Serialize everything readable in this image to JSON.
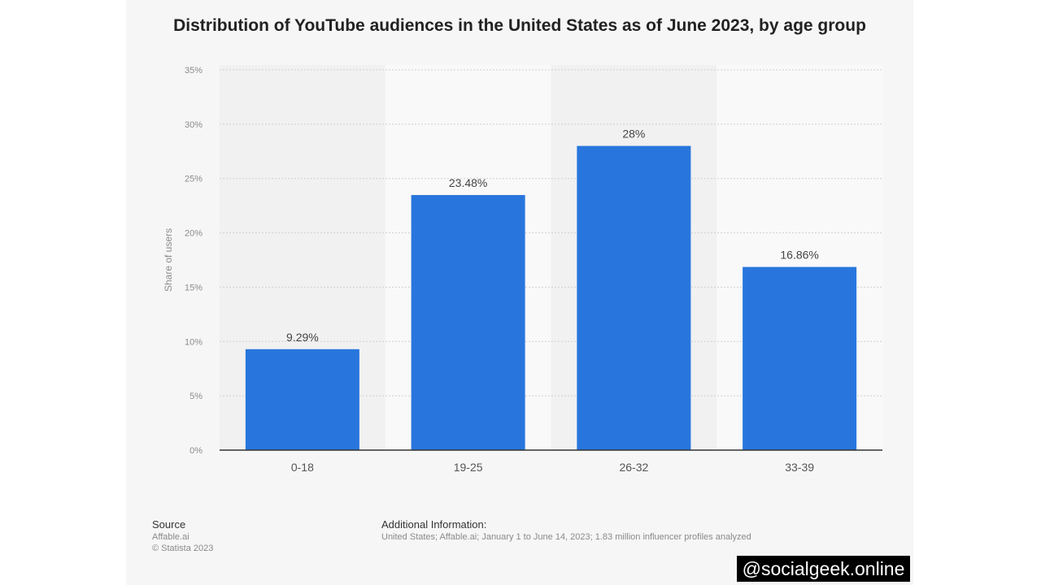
{
  "chart_data": {
    "type": "bar",
    "title": "Distribution of YouTube audiences in the United States as of June 2023, by age group",
    "categories": [
      "0-18",
      "19-25",
      "26-32",
      "33-39"
    ],
    "values": [
      9.29,
      23.48,
      28,
      16.86
    ],
    "data_labels": [
      "9.29%",
      "23.48%",
      "28%",
      "16.86%"
    ],
    "ylabel": "Share of users",
    "xlabel": "",
    "ylim": [
      0,
      35
    ],
    "yticks": [
      0,
      5,
      10,
      15,
      20,
      25,
      30,
      35
    ],
    "ytick_labels": [
      "0%",
      "5%",
      "10%",
      "15%",
      "20%",
      "25%",
      "30%",
      "35%"
    ],
    "grid": true,
    "bar_color": "#2876dd"
  },
  "footer": {
    "source_heading": "Source",
    "source_name": "Affable.ai",
    "copyright": "© Statista 2023",
    "additional_heading": "Additional Information:",
    "additional_text": "United States; Affable.ai; January 1 to June 14, 2023; 1.83 million influencer profiles analyzed"
  },
  "watermark": "@socialgeek.online"
}
